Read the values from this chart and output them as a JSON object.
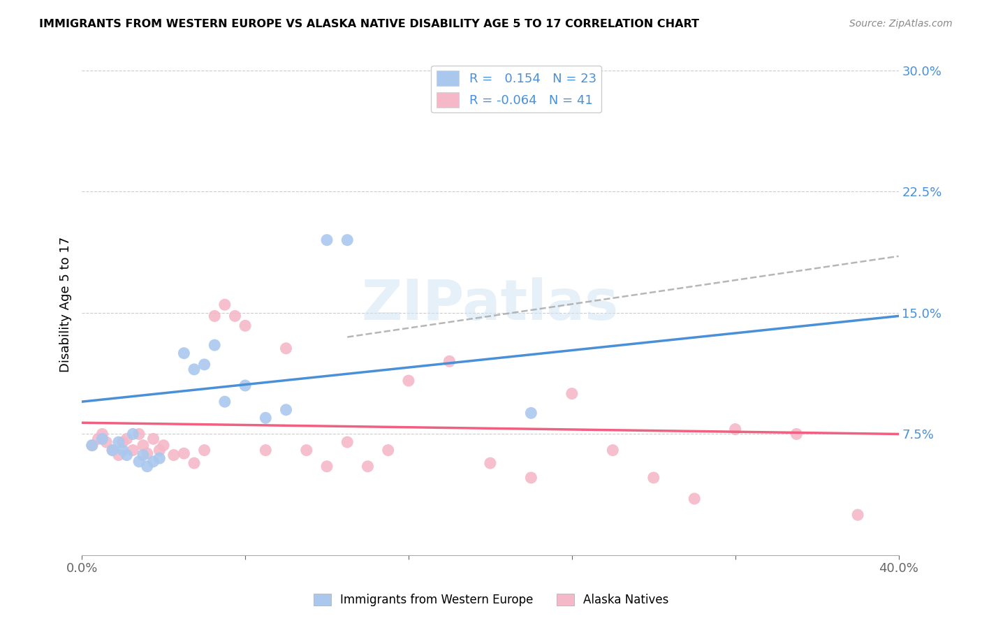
{
  "title": "IMMIGRANTS FROM WESTERN EUROPE VS ALASKA NATIVE DISABILITY AGE 5 TO 17 CORRELATION CHART",
  "source": "Source: ZipAtlas.com",
  "ylabel": "Disability Age 5 to 17",
  "xlim": [
    0.0,
    0.4
  ],
  "ylim": [
    0.0,
    0.31
  ],
  "yticks": [
    0.075,
    0.15,
    0.225,
    0.3
  ],
  "ytick_labels": [
    "7.5%",
    "15.0%",
    "22.5%",
    "30.0%"
  ],
  "xticks": [
    0.0,
    0.08,
    0.16,
    0.24,
    0.32,
    0.4
  ],
  "xtick_labels": [
    "0.0%",
    "",
    "",
    "",
    "",
    "40.0%"
  ],
  "blue_R": 0.154,
  "blue_N": 23,
  "pink_R": -0.064,
  "pink_N": 41,
  "blue_color": "#aac8ee",
  "pink_color": "#f4b8c8",
  "blue_line_color": "#4a90d9",
  "pink_line_color": "#f06080",
  "dashed_line_color": "#aaaaaa",
  "watermark": "ZIPatlas",
  "blue_scatter_x": [
    0.005,
    0.01,
    0.015,
    0.018,
    0.02,
    0.022,
    0.025,
    0.028,
    0.03,
    0.032,
    0.035,
    0.038,
    0.05,
    0.055,
    0.06,
    0.065,
    0.07,
    0.08,
    0.09,
    0.1,
    0.12,
    0.13,
    0.22
  ],
  "blue_scatter_y": [
    0.068,
    0.072,
    0.065,
    0.07,
    0.065,
    0.062,
    0.075,
    0.058,
    0.062,
    0.055,
    0.058,
    0.06,
    0.125,
    0.115,
    0.118,
    0.13,
    0.095,
    0.105,
    0.085,
    0.09,
    0.195,
    0.195,
    0.088
  ],
  "pink_scatter_x": [
    0.005,
    0.008,
    0.01,
    0.012,
    0.015,
    0.018,
    0.02,
    0.022,
    0.025,
    0.028,
    0.03,
    0.032,
    0.035,
    0.038,
    0.04,
    0.045,
    0.05,
    0.055,
    0.06,
    0.065,
    0.07,
    0.075,
    0.08,
    0.09,
    0.1,
    0.11,
    0.12,
    0.13,
    0.14,
    0.15,
    0.16,
    0.18,
    0.2,
    0.22,
    0.24,
    0.26,
    0.28,
    0.3,
    0.32,
    0.35,
    0.38
  ],
  "pink_scatter_y": [
    0.068,
    0.072,
    0.075,
    0.07,
    0.065,
    0.062,
    0.07,
    0.072,
    0.065,
    0.075,
    0.068,
    0.063,
    0.072,
    0.065,
    0.068,
    0.062,
    0.063,
    0.057,
    0.065,
    0.148,
    0.155,
    0.148,
    0.142,
    0.065,
    0.128,
    0.065,
    0.055,
    0.07,
    0.055,
    0.065,
    0.108,
    0.12,
    0.057,
    0.048,
    0.1,
    0.065,
    0.048,
    0.035,
    0.078,
    0.075,
    0.025
  ],
  "blue_line_x0": 0.0,
  "blue_line_x1": 0.4,
  "blue_line_y0": 0.095,
  "blue_line_y1": 0.148,
  "pink_line_x0": 0.0,
  "pink_line_x1": 0.4,
  "pink_line_y0": 0.082,
  "pink_line_y1": 0.075,
  "dashed_line_x0": 0.13,
  "dashed_line_x1": 0.4,
  "dashed_line_y0": 0.135,
  "dashed_line_y1": 0.185
}
